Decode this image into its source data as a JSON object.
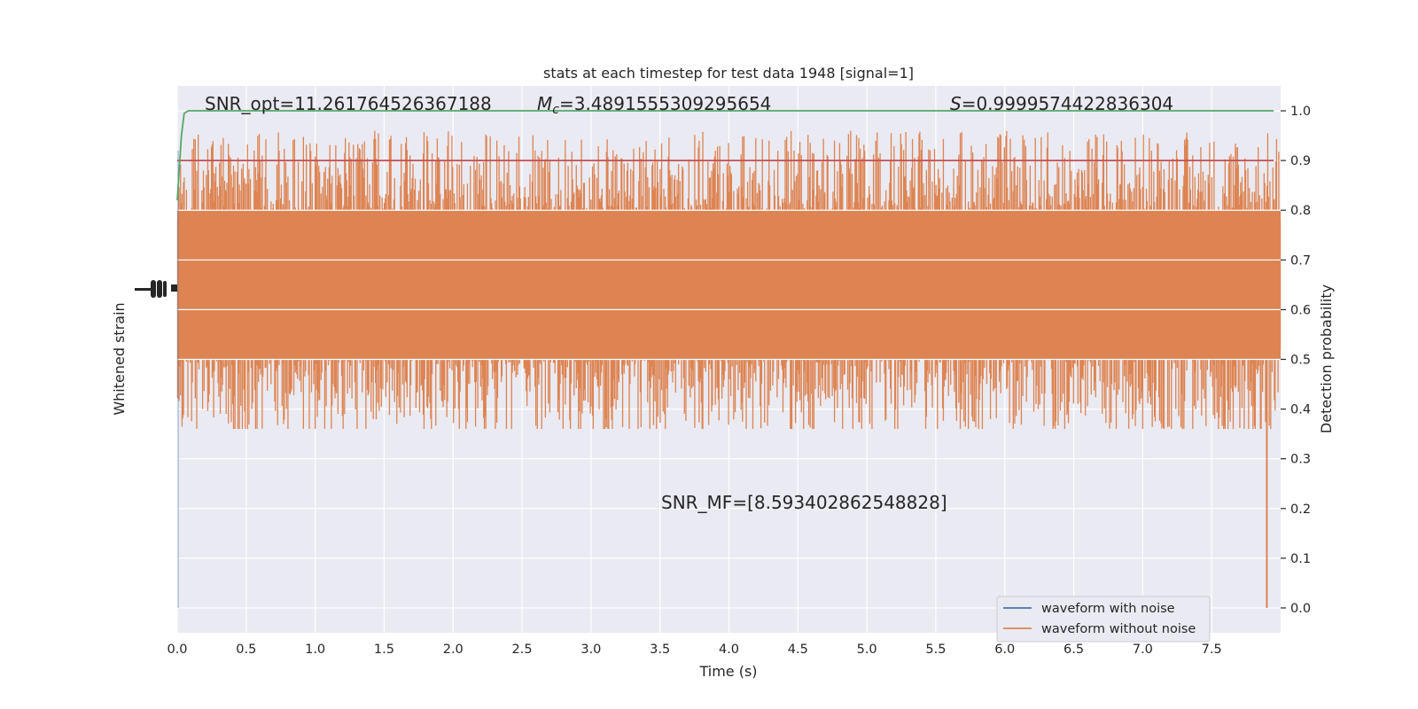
{
  "chart_data": {
    "type": "line",
    "title": "stats at each timestep for test data 1948 [signal=1]",
    "xlabel": "Time (s)",
    "ylabel_left": "Whitened strain",
    "ylabel_right": "Detection probability",
    "xlim": [
      0,
      8
    ],
    "ylim_right": [
      -0.05,
      1.05
    ],
    "x_ticks": [
      "0.0",
      "0.5",
      "1.0",
      "1.5",
      "2.0",
      "2.5",
      "3.0",
      "3.5",
      "4.0",
      "4.5",
      "5.0",
      "5.5",
      "6.0",
      "6.5",
      "7.0",
      "7.5"
    ],
    "y_ticks_right": [
      "0.0",
      "0.1",
      "0.2",
      "0.3",
      "0.4",
      "0.5",
      "0.6",
      "0.7",
      "0.8",
      "0.9",
      "1.0"
    ],
    "threshold": 0.9,
    "annotations": {
      "snr_opt": "SNR_opt=11.261764526367188",
      "mc_symbol": "M",
      "mc_sub": "c",
      "mc_value": "=3.4891555309295654",
      "s_symbol": "S",
      "s_value": "=0.9999574422836304",
      "snr_mf": "SNR_MF=[8.593402862548828]"
    },
    "legend": {
      "placement": "lower-right",
      "entries": [
        "waveform with noise",
        "waveform without noise"
      ]
    },
    "series": [
      {
        "name": "waveform with noise",
        "color": "#4c72b0"
      },
      {
        "name": "waveform without noise",
        "color": "#dd8452",
        "envelope_right_units": [
          0.36,
          0.96
        ],
        "core_right_units": [
          0.5,
          0.8
        ]
      },
      {
        "name": "detection probability",
        "color": "#55a868",
        "x": [
          0.0,
          0.03,
          0.05,
          0.08,
          0.12,
          7.95
        ],
        "y": [
          0.82,
          0.95,
          0.995,
          1.0,
          1.0,
          1.0
        ]
      },
      {
        "name": "threshold",
        "color": "#c44e52"
      }
    ],
    "grid": true,
    "colors": {
      "background": "#eaeaf2",
      "grid": "#ffffff"
    }
  }
}
